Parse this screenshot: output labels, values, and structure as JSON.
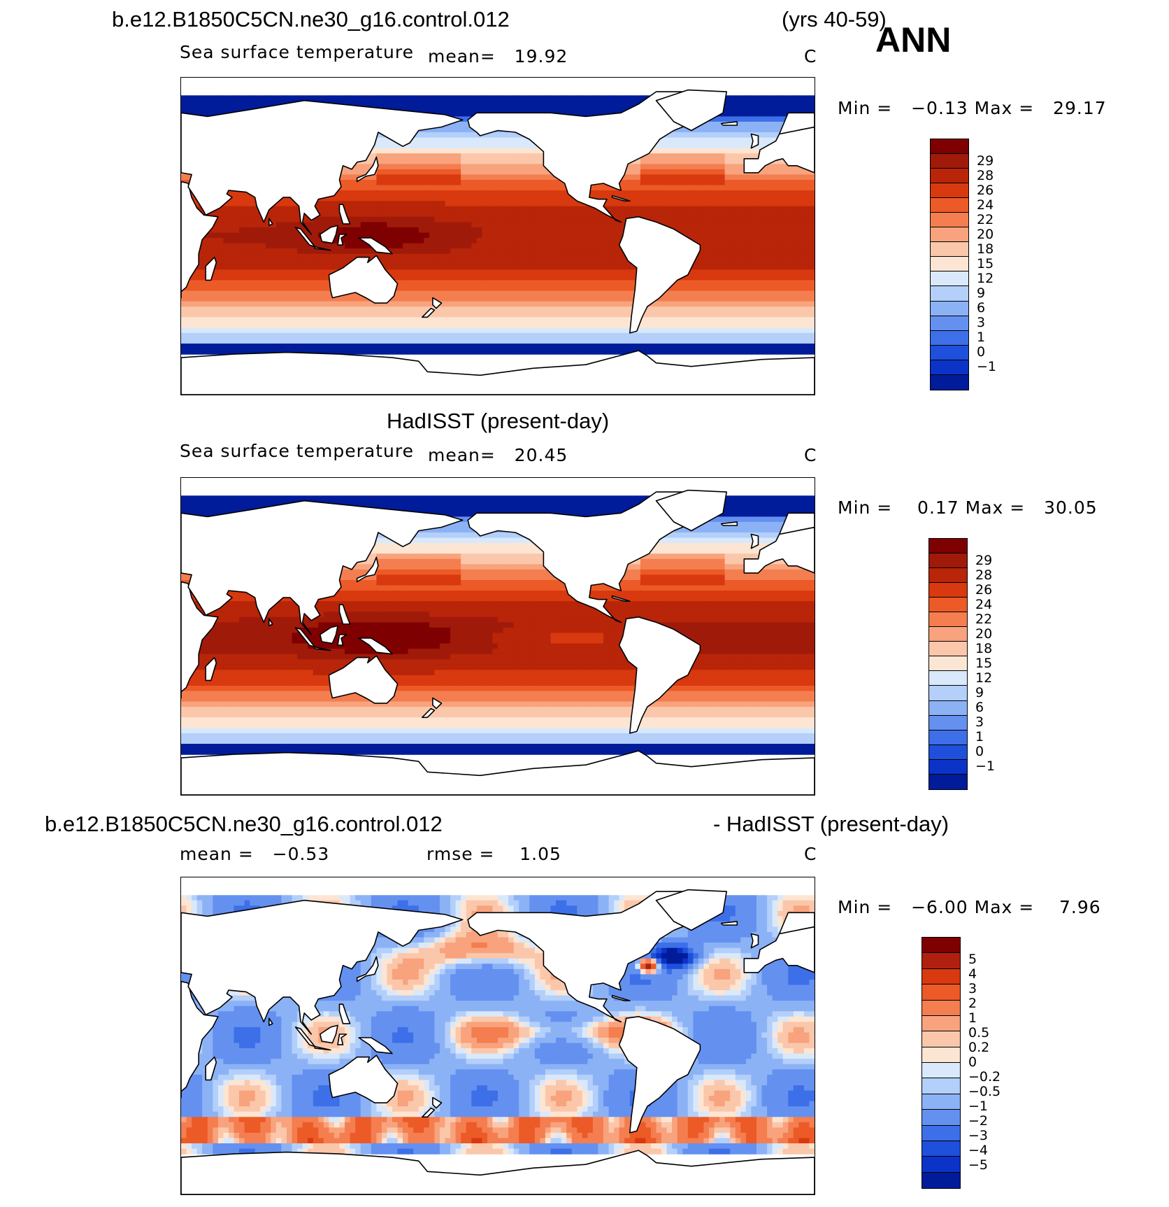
{
  "header": {
    "case_name": "b.e12.B1850C5CN.ne30_g16.control.012",
    "years": "(yrs 40-59)",
    "season": "ANN"
  },
  "panels": [
    {
      "title": "",
      "variable": "Sea surface temperature",
      "stat_text": "mean=   19.92",
      "stat2_text": "",
      "units": "C",
      "minmax_text": "Min =   −0.13 Max =   29.17",
      "kind": "sst",
      "colorbar_labels": [
        "29",
        "28",
        "26",
        "24",
        "22",
        "20",
        "18",
        "15",
        "12",
        "9",
        "6",
        "3",
        "1",
        "0",
        "−1"
      ]
    },
    {
      "title": "HadISST (present-day)",
      "variable": "Sea surface temperature",
      "stat_text": "mean=   20.45",
      "stat2_text": "",
      "units": "C",
      "minmax_text": "Min =    0.17 Max =   30.05",
      "kind": "sst",
      "colorbar_labels": [
        "29",
        "28",
        "26",
        "24",
        "22",
        "20",
        "18",
        "15",
        "12",
        "9",
        "6",
        "3",
        "1",
        "0",
        "−1"
      ]
    },
    {
      "title_left": "b.e12.B1850C5CN.ne30_g16.control.012",
      "title_right": "- HadISST (present-day)",
      "variable": "",
      "stat_text": "mean =   −0.53",
      "stat2_text": "rmse =    1.05",
      "units": "C",
      "minmax_text": "Min =   −6.00 Max =    7.96",
      "kind": "diff",
      "colorbar_labels": [
        "5",
        "4",
        "3",
        "2",
        "1",
        "0.5",
        "0.2",
        "0",
        "−0.2",
        "−0.5",
        "−1",
        "−2",
        "−3",
        "−4",
        "−5"
      ]
    }
  ],
  "colors": {
    "sst_scale": [
      "#7f0000",
      "#a01a0a",
      "#b82508",
      "#d8390f",
      "#ec5a27",
      "#f47e4f",
      "#f8a37d",
      "#fbc7ab",
      "#fde5d3",
      "#d9e9fb",
      "#b3cffa",
      "#8cb2f6",
      "#6491f0",
      "#3d6fe8",
      "#1e50dc",
      "#0b33c8",
      "#001c9a"
    ],
    "diff_scale": [
      "#7f0000",
      "#b02010",
      "#d8390f",
      "#ec5a27",
      "#f47e4f",
      "#f8a37d",
      "#fbc7ab",
      "#fde5d3",
      "#d9e9fb",
      "#b3cffa",
      "#8cb2f6",
      "#6491f0",
      "#3d6fe8",
      "#1e50dc",
      "#0b33c8",
      "#001c9a"
    ]
  }
}
